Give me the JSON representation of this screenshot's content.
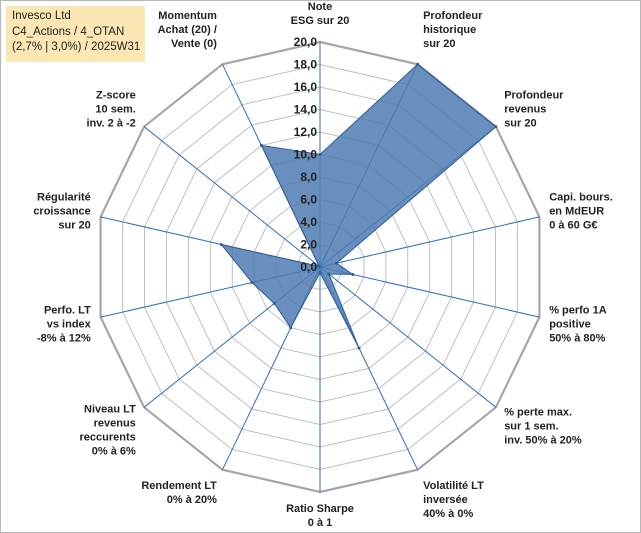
{
  "info_box": {
    "line1": "Invesco Ltd",
    "line2": "C4_Actions / 4_OTAN",
    "line3": "(2,7% | 3,0%) / 2025W31"
  },
  "chart_data": {
    "type": "radar",
    "rmin": 0,
    "rmax": 20,
    "grid": true,
    "legend": "none",
    "tick_labels": [
      "0,0",
      "2,0",
      "4,0",
      "6,0",
      "8,0",
      "10,0",
      "12,0",
      "14,0",
      "16,0",
      "18,0",
      "20,0"
    ],
    "categories": [
      [
        "Note",
        "ESG sur 20"
      ],
      [
        "Profondeur",
        "historique",
        "sur 20"
      ],
      [
        "Profondeur",
        "revenus",
        "sur 20"
      ],
      [
        "Capi. bours.",
        "en MdEUR",
        "0 à 60 G€"
      ],
      [
        "% perfo 1A",
        "positive",
        "50% à 80%"
      ],
      [
        "% perte max.",
        "sur 1 sem.",
        "inv. 50% à 20%"
      ],
      [
        "Volatilité LT",
        "inversée",
        "40% à 0%"
      ],
      [
        "Ratio Sharpe",
        "0 à 1"
      ],
      [
        "Rendement LT",
        "0% à 20%"
      ],
      [
        "Niveau LT",
        "revenus",
        "reccurents",
        "0% à 6%"
      ],
      [
        "Perfo. LT",
        "vs index",
        "-8% à 12%"
      ],
      [
        "Régularité",
        "croissance",
        "sur 20"
      ],
      [
        "Z-score",
        "10 sem.",
        "inv. 2 à -2"
      ],
      [
        "Momentum",
        "Achat (20) /",
        "Vente (0)"
      ]
    ],
    "values": [
      10,
      20,
      20,
      1.5,
      3,
      1,
      8,
      0.5,
      6,
      5.2,
      6.2,
      9,
      0.1,
      12
    ],
    "colors": {
      "fill": "#4f7bb3",
      "stroke": "#2e5c99",
      "axis": "#2f6fbf",
      "grid": "#bfbfbf",
      "outer": "#a6a6a6"
    }
  }
}
